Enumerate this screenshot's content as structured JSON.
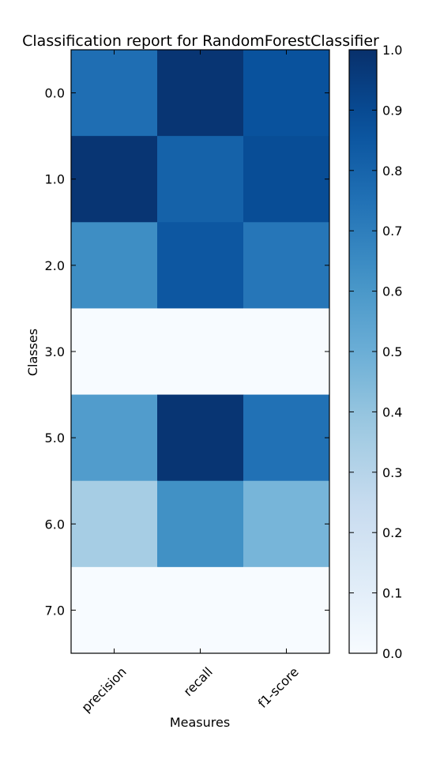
{
  "chart_data": {
    "type": "heatmap",
    "title": "Classification report for RandomForestClassifier",
    "xlabel": "Measures",
    "ylabel": "Classes",
    "x_categories": [
      "precision",
      "recall",
      "f1-score"
    ],
    "y_categories": [
      "0.0",
      "1.0",
      "2.0",
      "3.0",
      "5.0",
      "6.0",
      "7.0"
    ],
    "values": [
      [
        0.76,
        0.98,
        0.87
      ],
      [
        0.98,
        0.81,
        0.89
      ],
      [
        0.64,
        0.85,
        0.73
      ],
      [
        0.0,
        0.0,
        0.0
      ],
      [
        0.58,
        0.98,
        0.75
      ],
      [
        0.35,
        0.63,
        0.47
      ],
      [
        0.0,
        0.0,
        0.0
      ]
    ],
    "colormap": "Blues",
    "color_range": [
      0.0,
      1.0
    ],
    "colorbar_ticks": [
      "0.0",
      "0.1",
      "0.2",
      "0.3",
      "0.4",
      "0.5",
      "0.6",
      "0.7",
      "0.8",
      "0.9",
      "1.0"
    ],
    "grid": false
  }
}
